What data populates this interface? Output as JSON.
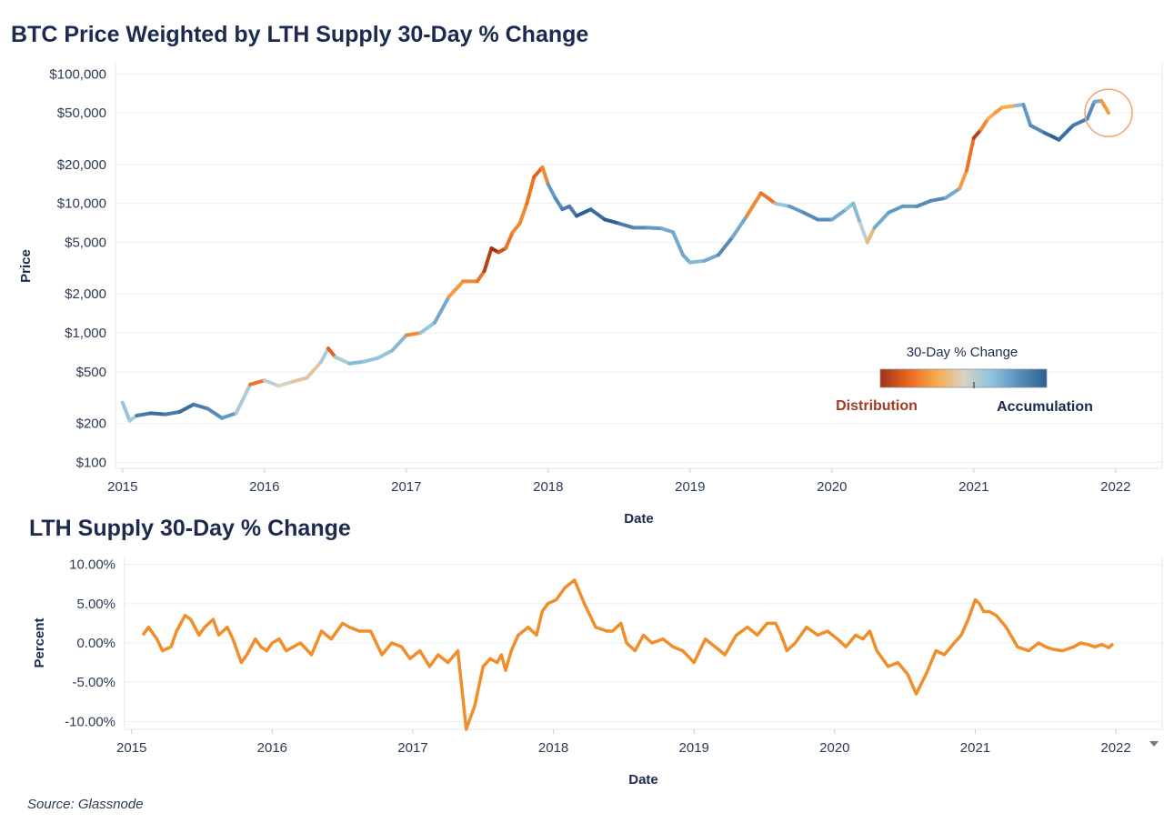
{
  "titles": {
    "main": "BTC Price Weighted by LTH Supply 30-Day % Change",
    "sub": "LTH Supply 30-Day % Change"
  },
  "source": "Source: Glassnode",
  "legend": {
    "title": "30-Day % Change",
    "left_label": "Distribution",
    "right_label": "Accumulation",
    "colors": [
      "#9e3118",
      "#e8671d",
      "#f7a84a",
      "#d9d2c3",
      "#8ec3e0",
      "#5a8fbd",
      "#2d5f92"
    ]
  },
  "colors": {
    "line_orange": "#ef8e2a",
    "highlight_circle": "#f2a271"
  },
  "chart_data": [
    {
      "type": "line",
      "title": "BTC Price Weighted by LTH Supply 30-Day % Change",
      "xlabel": "Date",
      "ylabel": "Price",
      "yscale": "log",
      "xlim": [
        2014.95,
        2022.2
      ],
      "ylim": [
        90,
        120000
      ],
      "x_ticks": [
        "2015",
        "2016",
        "2017",
        "2018",
        "2019",
        "2020",
        "2021",
        "2022"
      ],
      "y_ticks": [
        {
          "value": 100000,
          "label": "$100,000"
        },
        {
          "value": 50000,
          "label": "$50,000"
        },
        {
          "value": 20000,
          "label": "$20,000"
        },
        {
          "value": 10000,
          "label": "$10,000"
        },
        {
          "value": 5000,
          "label": "$5,000"
        },
        {
          "value": 2000,
          "label": "$2,000"
        },
        {
          "value": 1000,
          "label": "$1,000"
        },
        {
          "value": 500,
          "label": "$500"
        },
        {
          "value": 200,
          "label": "$200"
        },
        {
          "value": 100,
          "label": "$100"
        }
      ],
      "series": [
        {
          "x": [
            2015.0,
            2015.05,
            2015.1,
            2015.2,
            2015.3,
            2015.4,
            2015.5,
            2015.6,
            2015.7,
            2015.8,
            2015.9,
            2016.0,
            2016.1,
            2016.2,
            2016.3,
            2016.4,
            2016.45,
            2016.5,
            2016.6,
            2016.7,
            2016.8,
            2016.9,
            2017.0,
            2017.1,
            2017.2,
            2017.3,
            2017.4,
            2017.5,
            2017.55,
            2017.6,
            2017.65,
            2017.7,
            2017.75,
            2017.8,
            2017.85,
            2017.9,
            2017.96,
            2018.0,
            2018.05,
            2018.1,
            2018.15,
            2018.2,
            2018.3,
            2018.4,
            2018.5,
            2018.6,
            2018.7,
            2018.8,
            2018.88,
            2018.95,
            2019.0,
            2019.1,
            2019.2,
            2019.3,
            2019.4,
            2019.5,
            2019.55,
            2019.6,
            2019.7,
            2019.8,
            2019.9,
            2020.0,
            2020.1,
            2020.15,
            2020.2,
            2020.25,
            2020.3,
            2020.4,
            2020.5,
            2020.6,
            2020.7,
            2020.8,
            2020.9,
            2020.95,
            2021.0,
            2021.05,
            2021.1,
            2021.15,
            2021.2,
            2021.3,
            2021.35,
            2021.4,
            2021.5,
            2021.55,
            2021.6,
            2021.7,
            2021.8,
            2021.85,
            2021.9,
            2021.95
          ],
          "y": [
            290,
            210,
            230,
            240,
            235,
            245,
            280,
            260,
            220,
            240,
            400,
            430,
            390,
            420,
            450,
            600,
            760,
            650,
            580,
            600,
            640,
            730,
            960,
            1000,
            1200,
            1900,
            2500,
            2500,
            3000,
            4500,
            4200,
            4500,
            6000,
            7000,
            10000,
            16000,
            19000,
            14000,
            11000,
            9000,
            9500,
            8000,
            9000,
            7500,
            7000,
            6500,
            6500,
            6400,
            6000,
            4000,
            3500,
            3600,
            4000,
            5500,
            8000,
            12000,
            11000,
            10000,
            9500,
            8500,
            7500,
            7500,
            9000,
            10000,
            7000,
            5000,
            6500,
            8500,
            9500,
            9500,
            10500,
            11000,
            13000,
            18000,
            32000,
            37000,
            45000,
            50000,
            55000,
            57000,
            58000,
            40000,
            35000,
            33000,
            31000,
            40000,
            45000,
            61000,
            62000,
            50000
          ],
          "accumulation_index": [
            0.3,
            0.2,
            0.8,
            0.9,
            0.8,
            0.9,
            0.8,
            0.7,
            0.6,
            0.2,
            -0.6,
            0.1,
            0.0,
            -0.1,
            -0.1,
            0.2,
            -0.7,
            0.2,
            0.4,
            0.3,
            0.3,
            0.4,
            -0.5,
            0.3,
            0.5,
            -0.4,
            -0.5,
            -0.6,
            -0.9,
            -1.0,
            -0.8,
            -0.6,
            -0.5,
            -0.5,
            -0.6,
            -0.7,
            -0.5,
            0.6,
            0.7,
            0.8,
            0.8,
            1.0,
            0.9,
            1.0,
            0.8,
            0.7,
            0.6,
            0.5,
            0.5,
            0.5,
            0.4,
            0.5,
            0.7,
            0.5,
            -0.5,
            -0.6,
            -0.6,
            0.3,
            0.6,
            0.7,
            0.7,
            0.5,
            0.3,
            0.4,
            0.1,
            -0.2,
            0.5,
            0.6,
            0.6,
            0.7,
            0.7,
            0.5,
            -0.4,
            -0.6,
            -0.9,
            -0.5,
            -0.3,
            -0.4,
            -0.3,
            0.4,
            0.6,
            0.7,
            0.9,
            1.0,
            0.9,
            0.8,
            0.7,
            0.5,
            -0.4,
            -0.2
          ]
        }
      ],
      "highlight_circle_at": [
        2021.95,
        50000
      ]
    },
    {
      "type": "line",
      "title": "LTH Supply 30-Day % Change",
      "xlabel": "Date",
      "ylabel": "Percent",
      "xlim": [
        2014.95,
        2022.2
      ],
      "ylim": [
        -11,
        11
      ],
      "x_ticks": [
        "2015",
        "2016",
        "2017",
        "2018",
        "2019",
        "2020",
        "2021",
        "2022"
      ],
      "y_ticks": [
        {
          "value": 10,
          "label": "10.00%"
        },
        {
          "value": 5,
          "label": "5.00%"
        },
        {
          "value": 0,
          "label": "0.00%"
        },
        {
          "value": -5,
          "label": "-5.00%"
        },
        {
          "value": -10,
          "label": "-10.00%"
        }
      ],
      "series": [
        {
          "name": "LTH Supply 30-Day % Change",
          "x": [
            2015.08,
            2015.12,
            2015.18,
            2015.22,
            2015.28,
            2015.32,
            2015.38,
            2015.42,
            2015.48,
            2015.52,
            2015.58,
            2015.62,
            2015.68,
            2015.72,
            2015.78,
            2015.82,
            2015.88,
            2015.92,
            2015.96,
            2016.0,
            2016.05,
            2016.1,
            2016.15,
            2016.2,
            2016.28,
            2016.35,
            2016.42,
            2016.5,
            2016.55,
            2016.62,
            2016.7,
            2016.78,
            2016.85,
            2016.92,
            2016.98,
            2017.05,
            2017.12,
            2017.18,
            2017.25,
            2017.32,
            2017.38,
            2017.44,
            2017.5,
            2017.55,
            2017.6,
            2017.63,
            2017.66,
            2017.7,
            2017.75,
            2017.82,
            2017.88,
            2017.92,
            2017.96,
            2018.02,
            2018.08,
            2018.15,
            2018.22,
            2018.3,
            2018.38,
            2018.42,
            2018.48,
            2018.52,
            2018.58,
            2018.64,
            2018.7,
            2018.78,
            2018.85,
            2018.92,
            2019.0,
            2019.08,
            2019.15,
            2019.22,
            2019.3,
            2019.38,
            2019.45,
            2019.52,
            2019.58,
            2019.62,
            2019.66,
            2019.72,
            2019.8,
            2019.88,
            2019.95,
            2020.02,
            2020.08,
            2020.15,
            2020.2,
            2020.25,
            2020.3,
            2020.38,
            2020.45,
            2020.52,
            2020.58,
            2020.65,
            2020.72,
            2020.78,
            2020.85,
            2020.9,
            2020.95,
            2021.0,
            2021.03,
            2021.06,
            2021.1,
            2021.15,
            2021.22,
            2021.3,
            2021.38,
            2021.45,
            2021.5,
            2021.55,
            2021.62,
            2021.7,
            2021.75,
            2021.8,
            2021.85,
            2021.9,
            2021.95,
            2021.98
          ],
          "values": [
            1.0,
            2.0,
            0.5,
            -1.0,
            -0.5,
            1.5,
            3.5,
            3.0,
            1.0,
            2.0,
            3.0,
            1.0,
            2.0,
            0.5,
            -2.5,
            -1.5,
            0.5,
            -0.5,
            -1.0,
            0.0,
            0.5,
            -1.0,
            -0.5,
            0.0,
            -1.5,
            1.5,
            0.5,
            2.5,
            2.0,
            1.5,
            1.5,
            -1.5,
            0.0,
            -0.5,
            -2.0,
            -1.0,
            -3.0,
            -1.5,
            -2.5,
            -1.0,
            -11.0,
            -8.0,
            -3.0,
            -2.0,
            -2.5,
            -1.5,
            -3.5,
            -1.0,
            1.0,
            2.0,
            1.0,
            4.0,
            5.0,
            5.5,
            7.0,
            8.0,
            5.0,
            2.0,
            1.5,
            1.5,
            2.5,
            0.0,
            -1.0,
            1.0,
            0.0,
            0.5,
            -0.5,
            -1.0,
            -2.5,
            0.5,
            -0.5,
            -1.5,
            1.0,
            2.0,
            1.0,
            2.5,
            2.5,
            1.0,
            -1.0,
            0.0,
            2.0,
            1.0,
            1.5,
            0.5,
            -0.5,
            1.0,
            0.5,
            1.5,
            -1.0,
            -3.0,
            -2.5,
            -4.0,
            -6.5,
            -4.0,
            -1.0,
            -1.5,
            0.0,
            1.0,
            3.0,
            5.5,
            5.0,
            4.0,
            4.0,
            3.5,
            2.0,
            -0.5,
            -1.0,
            0.0,
            -0.5,
            -0.8,
            -1.0,
            -0.5,
            0.0,
            -0.2,
            -0.5,
            -0.2,
            -0.6,
            -0.1
          ]
        }
      ]
    }
  ]
}
